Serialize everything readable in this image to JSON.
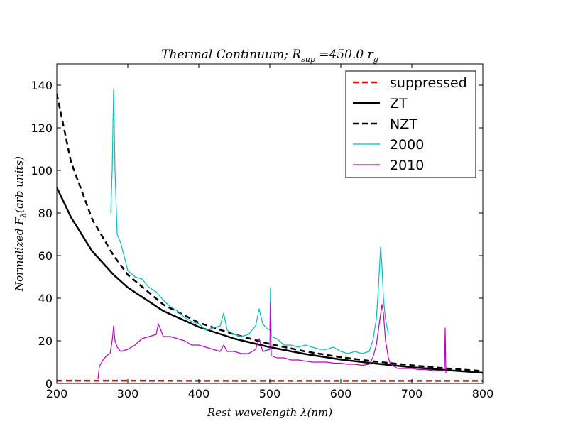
{
  "chart_data": {
    "type": "line",
    "title": "Thermal Continuum; R_sup = 450.0 r_g",
    "title_parts": {
      "prefix": "Thermal Continuum; R",
      "subscript": "sup",
      "middle": " =450.0 r",
      "subscript2": "g"
    },
    "xlabel": "Rest wavelength λ(nm)",
    "ylabel": "Normalized F_λ(arb units)",
    "ylabel_parts": {
      "prefix": "Normalized F",
      "subscript": "λ",
      "suffix": "(arb units)"
    },
    "xlim": [
      200,
      800
    ],
    "ylim": [
      0,
      150
    ],
    "xticks": [
      200,
      300,
      400,
      500,
      600,
      700,
      800
    ],
    "yticks": [
      0,
      20,
      40,
      60,
      80,
      100,
      120,
      140
    ],
    "grid": false,
    "legend_position": "top-right",
    "series": [
      {
        "name": "suppressed",
        "color": "#ff0000",
        "style": "dashed",
        "x": [
          200,
          300,
          400,
          500,
          600,
          700,
          800
        ],
        "y": [
          1.3,
          1.3,
          1.2,
          1.2,
          1.2,
          1.2,
          1.2
        ]
      },
      {
        "name": "ZT",
        "color": "#000000",
        "style": "solid",
        "x": [
          200,
          220,
          250,
          280,
          300,
          350,
          400,
          450,
          500,
          550,
          600,
          650,
          700,
          750,
          800
        ],
        "y": [
          92,
          78,
          62,
          51,
          45,
          34,
          26.5,
          21,
          17,
          13.8,
          11.2,
          9.3,
          7.6,
          6.2,
          5
        ]
      },
      {
        "name": "NZT",
        "color": "#000000",
        "style": "dashed",
        "x": [
          200,
          220,
          250,
          280,
          300,
          350,
          400,
          450,
          500,
          550,
          600,
          650,
          700,
          750,
          800
        ],
        "y": [
          136,
          104,
          77,
          60,
          51,
          37,
          28.5,
          23,
          18.5,
          15,
          12.3,
          10.2,
          8.5,
          7,
          5.8
        ]
      },
      {
        "name": "2000",
        "color": "#00bfbf",
        "style": "solid",
        "x": [
          276,
          278,
          280,
          282,
          285,
          290,
          300,
          310,
          320,
          330,
          340,
          350,
          360,
          370,
          380,
          390,
          400,
          410,
          420,
          430,
          435,
          440,
          450,
          460,
          470,
          480,
          485,
          490,
          495,
          500,
          501,
          502,
          510,
          520,
          530,
          540,
          550,
          560,
          570,
          580,
          590,
          600,
          610,
          620,
          630,
          640,
          645,
          650,
          653,
          656,
          658,
          660,
          663,
          667
        ],
        "y": [
          80,
          100,
          138,
          100,
          70,
          66,
          53,
          50,
          49,
          45,
          43,
          39,
          36,
          34,
          31,
          29,
          28,
          25,
          26,
          27,
          33,
          25,
          23,
          22,
          23,
          27,
          35,
          28,
          26,
          25,
          45,
          22,
          21,
          18,
          18,
          17,
          18,
          17,
          16,
          16,
          17,
          15,
          14,
          15,
          14,
          15,
          20,
          30,
          45,
          64,
          55,
          40,
          30,
          23
        ]
      },
      {
        "name": "2010",
        "color": "#bf00bf",
        "style": "solid",
        "x": [
          258,
          260,
          265,
          270,
          275,
          278,
          280,
          282,
          285,
          290,
          300,
          310,
          320,
          330,
          340,
          343,
          350,
          360,
          370,
          380,
          390,
          400,
          410,
          420,
          430,
          435,
          440,
          450,
          460,
          470,
          480,
          485,
          490,
          500,
          501,
          502,
          510,
          520,
          530,
          540,
          550,
          560,
          570,
          580,
          590,
          600,
          610,
          620,
          630,
          640,
          645,
          650,
          655,
          658,
          660,
          663,
          667,
          670,
          680,
          690,
          700,
          710,
          720,
          730,
          740,
          746,
          747,
          748,
          750
        ],
        "y": [
          2,
          8,
          11,
          13,
          14,
          20,
          27,
          20,
          17,
          15,
          16,
          18,
          21,
          22,
          23,
          28,
          22,
          22,
          21,
          20,
          18,
          18,
          17,
          16,
          15,
          18,
          15,
          15,
          14,
          14,
          16,
          21,
          15,
          16,
          38,
          13,
          12,
          12,
          11,
          11,
          10.5,
          10,
          10,
          10,
          9.5,
          9.5,
          9,
          9,
          8.5,
          9,
          12,
          18,
          30,
          37,
          33,
          20,
          12,
          9,
          7,
          7,
          7,
          6.5,
          6.5,
          6,
          6,
          6,
          26,
          5,
          5
        ]
      }
    ]
  }
}
